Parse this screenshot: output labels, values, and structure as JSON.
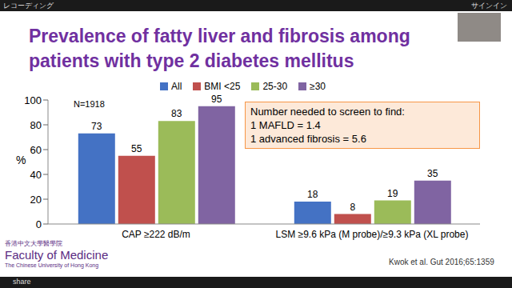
{
  "chart_data": {
    "type": "bar",
    "title": "Prevalence of fatty liver and fibrosis among patients with type 2 diabetes mellitus",
    "categories": [
      "CAP ≥222 dB/m",
      "LSM ≥9.6 kPa (M probe)/≥9.3 kPa (XL probe)"
    ],
    "series": [
      {
        "name": "All",
        "color": "#4472c4",
        "values": [
          73,
          18
        ]
      },
      {
        "name": "BMI <25",
        "color": "#c0504d",
        "values": [
          55,
          8
        ]
      },
      {
        "name": "25-30",
        "color": "#9bbb59",
        "values": [
          83,
          19
        ]
      },
      {
        "name": "≥30",
        "color": "#8064a2",
        "values": [
          95,
          35
        ]
      }
    ],
    "y_label": "%",
    "ylim": [
      0,
      100
    ],
    "yticks": [
      0,
      20,
      40,
      60,
      80,
      100
    ],
    "grid": false,
    "legend": "top",
    "data_labels": true,
    "annotations": {
      "sample_size": "N=1918",
      "box": [
        "Number needed to screen to find:",
        "1 MAFLD = 1.4",
        "1 advanced fibrosis = 5.6"
      ],
      "source": "Kwok et al. Gut 2016;65:1359",
      "logo": [
        "香港中文大學醫學院",
        "Faculty of Medicine",
        "The Chinese University of Hong Kong"
      ],
      "screen": {
        "top_left": "レコーディング",
        "top_right": "サインイン",
        "bottom_left": "share"
      }
    }
  }
}
